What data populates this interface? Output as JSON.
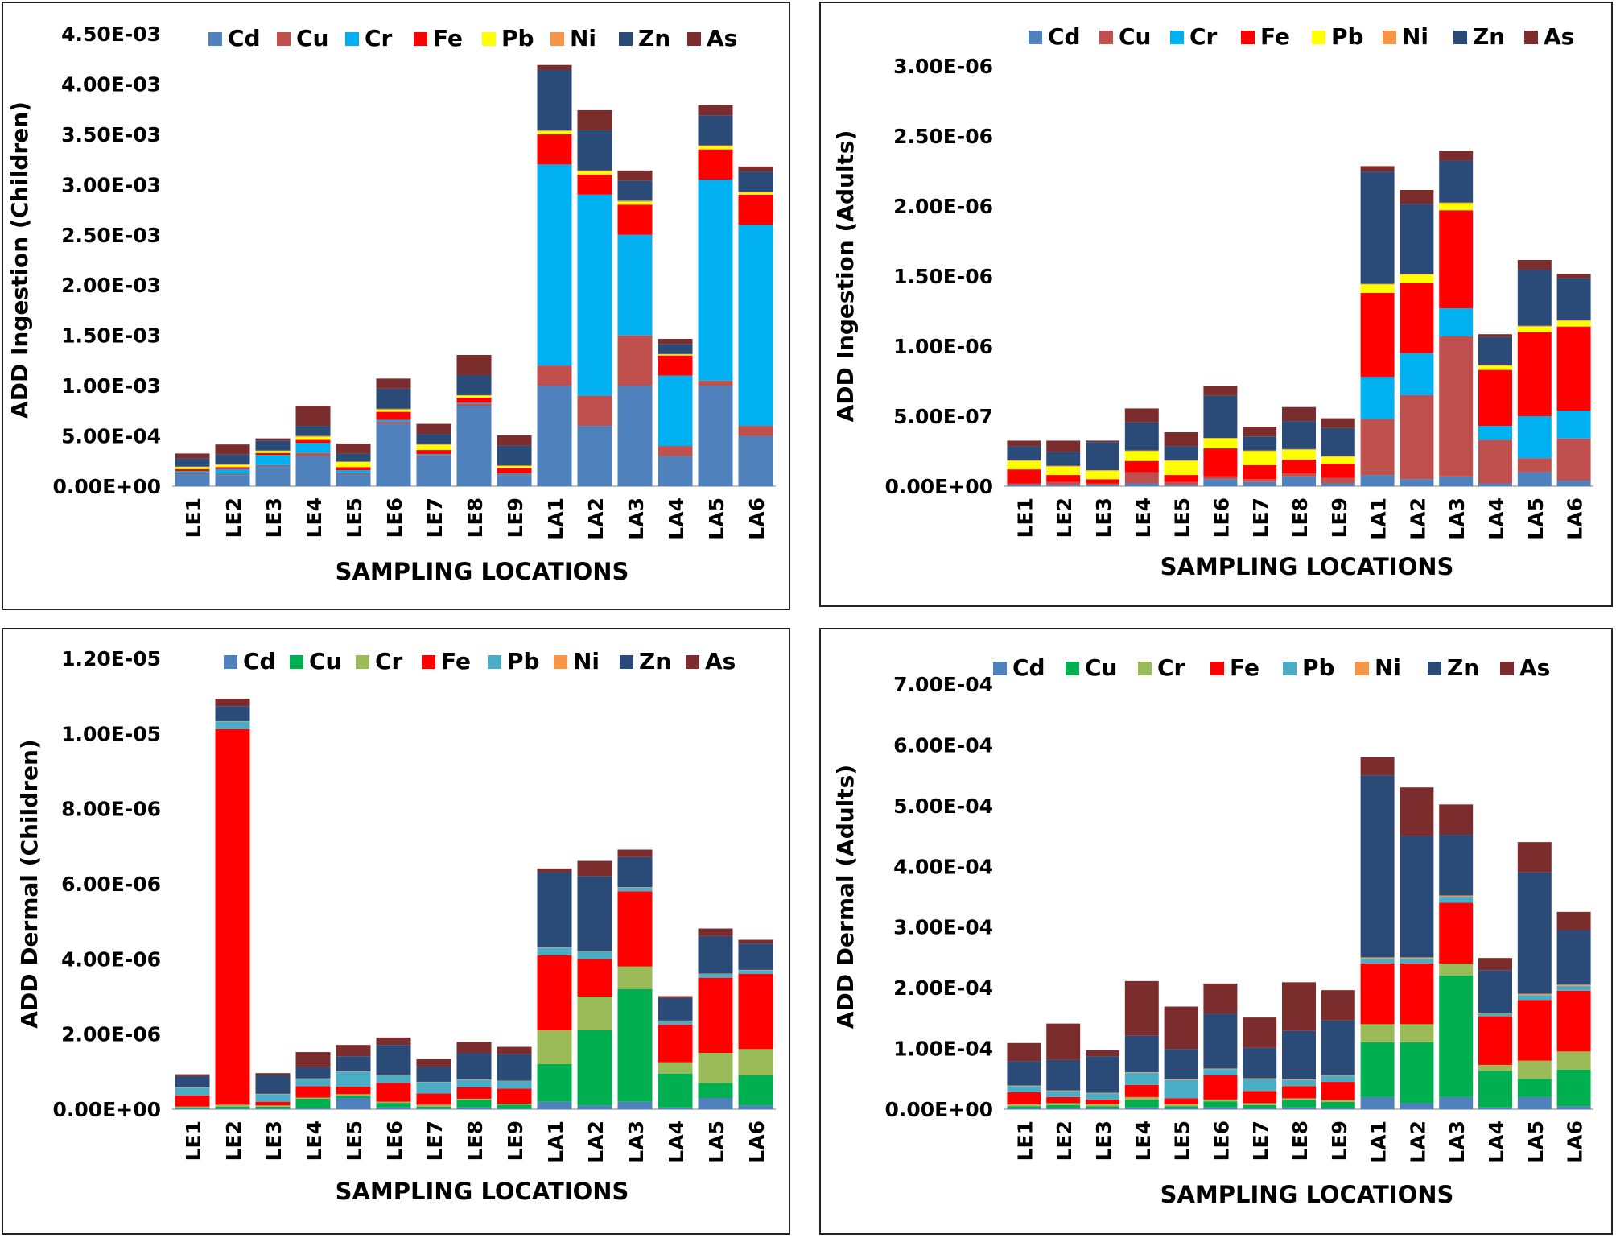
{
  "colors": {
    "Cd": "#4f81bd",
    "Cu_ingestion": "#c0504d",
    "Cu_dermal": "#00b050",
    "Cr_ingestion": "#00b0f0",
    "Cr_dermal": "#9bbb59",
    "Fe": "#ff0000",
    "Pb_ingestion": "#ffff00",
    "Pb_dermal": "#4bacc6",
    "Ni": "#f79646",
    "Zn": "#2a4a78",
    "As": "#7b2c2c"
  },
  "chart_data": [
    {
      "type": "bar",
      "stacked": true,
      "title": "",
      "ylabel": "ADD Ingestion (Children)",
      "xlabel": "SAMPLING LOCATIONS",
      "categories": [
        "LE1",
        "LE2",
        "LE3",
        "LE4",
        "LE5",
        "LE6",
        "LE7",
        "LE8",
        "LE9",
        "LA1",
        "LA2",
        "LA3",
        "LA4",
        "LA5",
        "LA6"
      ],
      "yticks": [
        "0.00E+00",
        "5.00E-04",
        "1.00E-03",
        "1.50E-03",
        "2.00E-03",
        "2.50E-03",
        "3.00E-03",
        "3.50E-03",
        "4.00E-03",
        "4.50E-03"
      ],
      "ylim": [
        0,
        0.0045
      ],
      "legend": "top",
      "series": [
        {
          "name": "Cd",
          "color": "#4f81bd",
          "values": [
            0.00012,
            0.00011,
            0.0002,
            0.0003,
            0.00012,
            0.00062,
            0.0003,
            0.0008,
            0.00011,
            0.001,
            0.0006,
            0.001,
            0.0003,
            0.001,
            0.0005
          ]
        },
        {
          "name": "Cu",
          "color": "#c0504d",
          "values": [
            1e-05,
            1e-05,
            1e-05,
            3e-05,
            1e-05,
            2e-05,
            1e-05,
            2e-05,
            1e-05,
            0.0002,
            0.0003,
            0.0005,
            0.0001,
            5e-05,
            0.0001
          ]
        },
        {
          "name": "Cr",
          "color": "#00b0f0",
          "values": [
            2e-05,
            5e-05,
            0.0001,
            0.0001,
            3e-05,
            2e-05,
            1e-05,
            1e-05,
            1e-05,
            0.002,
            0.002,
            0.001,
            0.0007,
            0.002,
            0.002
          ]
        },
        {
          "name": "Fe",
          "color": "#ff0000",
          "values": [
            2e-05,
            2e-05,
            2e-05,
            3e-05,
            3e-05,
            8e-05,
            4e-05,
            5e-05,
            5e-05,
            0.0003,
            0.0002,
            0.0003,
            0.0002,
            0.0003,
            0.0003
          ]
        },
        {
          "name": "Pb",
          "color": "#ffff00",
          "values": [
            2e-05,
            2e-05,
            2e-05,
            3e-05,
            5e-05,
            2e-05,
            5e-05,
            2e-05,
            2e-05,
            3e-05,
            3e-05,
            3e-05,
            1e-05,
            3e-05,
            2e-05
          ]
        },
        {
          "name": "Ni",
          "color": "#f79646",
          "values": [
            5e-06,
            5e-06,
            5e-06,
            1e-05,
            5e-06,
            1e-05,
            1e-05,
            5e-06,
            5e-06,
            1e-05,
            1e-05,
            1e-05,
            5e-06,
            1e-05,
            1e-05
          ]
        },
        {
          "name": "Zn",
          "color": "#2a4a78",
          "values": [
            8e-05,
            0.0001,
            0.0001,
            0.0001,
            8e-05,
            0.0002,
            0.0001,
            0.0002,
            0.0002,
            0.0006,
            0.0004,
            0.0002,
            0.0001,
            0.0003,
            0.0002
          ]
        },
        {
          "name": "As",
          "color": "#7b2c2c",
          "values": [
            5e-05,
            0.0001,
            2e-05,
            0.0002,
            0.0001,
            0.0001,
            0.0001,
            0.0002,
            0.0001,
            5e-05,
            0.0002,
            0.0001,
            5e-05,
            0.0001,
            5e-05
          ]
        }
      ]
    },
    {
      "type": "bar",
      "stacked": true,
      "title": "",
      "ylabel": "ADD Ingestion (Adults)",
      "xlabel": "SAMPLING LOCATIONS",
      "categories": [
        "LE1",
        "LE2",
        "LE3",
        "LE4",
        "LE5",
        "LE6",
        "LE7",
        "LE8",
        "LE9",
        "LA1",
        "LA2",
        "LA3",
        "LA4",
        "LA5",
        "LA6"
      ],
      "yticks": [
        "0.00E+00",
        "5.00E-07",
        "1.00E-06",
        "1.50E-06",
        "2.00E-06",
        "2.50E-06",
        "3.00E-06"
      ],
      "ylim": [
        0,
        3e-06
      ],
      "legend": "top",
      "series": [
        {
          "name": "Cd",
          "color": "#4f81bd",
          "values": [
            1e-08,
            1e-08,
            1e-08,
            2e-08,
            1e-08,
            5e-08,
            3e-08,
            7e-08,
            2e-08,
            8e-08,
            5e-08,
            7e-08,
            2e-08,
            1e-07,
            4e-08
          ]
        },
        {
          "name": "Cu",
          "color": "#c0504d",
          "values": [
            1e-08,
            2e-08,
            1e-08,
            8e-08,
            2e-08,
            2e-08,
            2e-08,
            2e-08,
            4e-08,
            4e-07,
            6e-07,
            1e-06,
            3.1e-07,
            1e-07,
            3e-07
          ]
        },
        {
          "name": "Cr",
          "color": "#00b0f0",
          "values": [
            0,
            0,
            0,
            0,
            0,
            0,
            0,
            0,
            0,
            3e-07,
            3e-07,
            2e-07,
            1e-07,
            3e-07,
            2e-07
          ]
        },
        {
          "name": "Fe",
          "color": "#ff0000",
          "values": [
            1e-07,
            5e-08,
            3e-08,
            8e-08,
            5e-08,
            2e-07,
            1e-07,
            1e-07,
            1e-07,
            6e-07,
            5e-07,
            7e-07,
            4e-07,
            6e-07,
            6e-07
          ]
        },
        {
          "name": "Pb",
          "color": "#ffff00",
          "values": [
            6e-08,
            6e-08,
            6e-08,
            7e-08,
            1e-07,
            7e-08,
            1e-07,
            7e-08,
            5e-08,
            6e-08,
            6e-08,
            5e-08,
            3e-08,
            4e-08,
            4e-08
          ]
        },
        {
          "name": "Ni",
          "color": "#f79646",
          "values": [
            5e-09,
            5e-09,
            5e-09,
            5e-09,
            5e-09,
            5e-09,
            5e-09,
            5e-09,
            5e-09,
            5e-09,
            5e-09,
            5e-09,
            5e-09,
            5e-09,
            5e-09
          ]
        },
        {
          "name": "Zn",
          "color": "#2a4a78",
          "values": [
            1e-07,
            1e-07,
            2e-07,
            2e-07,
            1e-07,
            3e-07,
            1e-07,
            2e-07,
            2e-07,
            8e-07,
            5e-07,
            3e-07,
            2e-07,
            4e-07,
            3e-07
          ]
        },
        {
          "name": "As",
          "color": "#7b2c2c",
          "values": [
            4e-08,
            8e-08,
            1e-08,
            1e-07,
            1e-07,
            7e-08,
            7e-08,
            1e-07,
            7e-08,
            4e-08,
            1e-07,
            7e-08,
            2e-08,
            7e-08,
            3e-08
          ]
        }
      ]
    },
    {
      "type": "bar",
      "stacked": true,
      "title": "",
      "ylabel": "ADD Dermal (Children)",
      "xlabel": "SAMPLING LOCATIONS",
      "categories": [
        "LE1",
        "LE2",
        "LE3",
        "LE4",
        "LE5",
        "LE6",
        "LE7",
        "LE8",
        "LE9",
        "LA1",
        "LA2",
        "LA3",
        "LA4",
        "LA5",
        "LA6"
      ],
      "yticks": [
        "0.00E+00",
        "2.00E-06",
        "4.00E-06",
        "6.00E-06",
        "8.00E-06",
        "1.00E-05",
        "1.20E-05"
      ],
      "ylim": [
        0,
        1.2e-05
      ],
      "legend": "top",
      "series": [
        {
          "name": "Cd",
          "color": "#4f81bd",
          "values": [
            2e-08,
            2e-08,
            2e-08,
            3e-08,
            3e-07,
            5e-08,
            2e-08,
            5e-08,
            2e-08,
            2e-07,
            1e-07,
            2e-07,
            5e-08,
            3e-07,
            1e-07
          ]
        },
        {
          "name": "Cu",
          "color": "#00b050",
          "values": [
            3e-08,
            5e-08,
            5e-08,
            2.5e-07,
            5e-08,
            1.2e-07,
            5e-08,
            2e-07,
            1e-07,
            1e-06,
            2e-06,
            3e-06,
            9e-07,
            4e-07,
            8e-07
          ]
        },
        {
          "name": "Cr",
          "color": "#9bbb59",
          "values": [
            2e-08,
            5e-08,
            3e-08,
            3e-08,
            5e-08,
            3e-08,
            5e-08,
            3e-08,
            3e-08,
            9e-07,
            9e-07,
            6e-07,
            3e-07,
            8e-07,
            7e-07
          ]
        },
        {
          "name": "Fe",
          "color": "#ff0000",
          "values": [
            3e-07,
            1e-05,
            1e-07,
            3e-07,
            2e-07,
            5e-07,
            3e-07,
            3e-07,
            4e-07,
            2e-06,
            1e-06,
            2e-06,
            1e-06,
            2e-06,
            2e-06
          ]
        },
        {
          "name": "Pb",
          "color": "#4bacc6",
          "values": [
            2e-07,
            2e-07,
            2e-07,
            2e-07,
            4e-07,
            2e-07,
            3e-07,
            2e-07,
            2e-07,
            2e-07,
            2e-07,
            1e-07,
            1e-07,
            1e-07,
            1e-07
          ]
        },
        {
          "name": "Ni",
          "color": "#f79646",
          "values": [
            1e-08,
            1e-08,
            1e-08,
            1e-08,
            1e-08,
            1e-08,
            1e-08,
            1e-08,
            1e-08,
            1e-08,
            1e-08,
            1e-08,
            1e-08,
            1e-08,
            1e-08
          ]
        },
        {
          "name": "Zn",
          "color": "#2a4a78",
          "values": [
            3e-07,
            4e-07,
            5e-07,
            3e-07,
            4e-07,
            8e-07,
            4e-07,
            7e-07,
            7e-07,
            2e-06,
            2e-06,
            8e-07,
            6e-07,
            1e-06,
            7e-07
          ]
        },
        {
          "name": "As",
          "color": "#7b2c2c",
          "values": [
            5e-08,
            2e-07,
            5e-08,
            4e-07,
            3e-07,
            2e-07,
            2e-07,
            3e-07,
            2e-07,
            1e-07,
            4e-07,
            2e-07,
            5e-08,
            2e-07,
            1e-07
          ]
        }
      ]
    },
    {
      "type": "bar",
      "stacked": true,
      "title": "",
      "ylabel": "ADD Dermal (Adults)",
      "xlabel": "SAMPLING LOCATIONS",
      "categories": [
        "LE1",
        "LE2",
        "LE3",
        "LE4",
        "LE5",
        "LE6",
        "LE7",
        "LE8",
        "LE9",
        "LA1",
        "LA2",
        "LA3",
        "LA4",
        "LA5",
        "LA6"
      ],
      "yticks": [
        "0.00E+00",
        "1.00E-04",
        "2.00E-04",
        "3.00E-04",
        "4.00E-04",
        "5.00E-04",
        "6.00E-04",
        "7.00E-04"
      ],
      "ylim": [
        0,
        0.0007
      ],
      "legend": "top",
      "series": [
        {
          "name": "Cd",
          "color": "#4f81bd",
          "values": [
            2e-06,
            2e-06,
            2e-06,
            3e-06,
            2e-06,
            3e-06,
            2e-06,
            3e-06,
            2e-06,
            2e-05,
            1e-05,
            2e-05,
            3e-06,
            2e-05,
            5e-06
          ]
        },
        {
          "name": "Cu",
          "color": "#00b050",
          "values": [
            3e-06,
            5e-06,
            3e-06,
            1.2e-05,
            3e-06,
            1e-05,
            5e-06,
            1.2e-05,
            1e-05,
            9e-05,
            0.0001,
            0.0002,
            6e-05,
            3e-05,
            6e-05
          ]
        },
        {
          "name": "Cr",
          "color": "#9bbb59",
          "values": [
            3e-06,
            3e-06,
            3e-06,
            5e-06,
            3e-06,
            3e-06,
            3e-06,
            3e-06,
            3e-06,
            3e-05,
            3e-05,
            2e-05,
            1e-05,
            3e-05,
            3e-05
          ]
        },
        {
          "name": "Fe",
          "color": "#ff0000",
          "values": [
            2e-05,
            1e-05,
            8e-06,
            2e-05,
            1e-05,
            4e-05,
            2e-05,
            2e-05,
            3e-05,
            0.0001,
            0.0001,
            0.0001,
            8e-05,
            0.0001,
            0.0001
          ]
        },
        {
          "name": "Pb",
          "color": "#4bacc6",
          "values": [
            1e-05,
            1e-05,
            1e-05,
            2e-05,
            3e-05,
            1e-05,
            2e-05,
            1e-05,
            1e-05,
            8e-06,
            8e-06,
            1e-05,
            5e-06,
            8e-06,
            8e-06
          ]
        },
        {
          "name": "Ni",
          "color": "#f79646",
          "values": [
            1e-06,
            1e-06,
            1e-06,
            1e-06,
            1e-06,
            1e-06,
            1e-06,
            1e-06,
            1e-06,
            2e-06,
            2e-06,
            2e-06,
            1e-06,
            2e-06,
            2e-06
          ]
        },
        {
          "name": "Zn",
          "color": "#2a4a78",
          "values": [
            4e-05,
            5e-05,
            6e-05,
            6e-05,
            5e-05,
            9e-05,
            5e-05,
            8e-05,
            9e-05,
            0.0003,
            0.0002,
            0.0001,
            7e-05,
            0.0002,
            9e-05
          ]
        },
        {
          "name": "As",
          "color": "#7b2c2c",
          "values": [
            3e-05,
            6e-05,
            1e-05,
            9e-05,
            7e-05,
            5e-05,
            5e-05,
            8e-05,
            5e-05,
            3e-05,
            8e-05,
            5e-05,
            2e-05,
            5e-05,
            3e-05
          ]
        }
      ]
    }
  ]
}
